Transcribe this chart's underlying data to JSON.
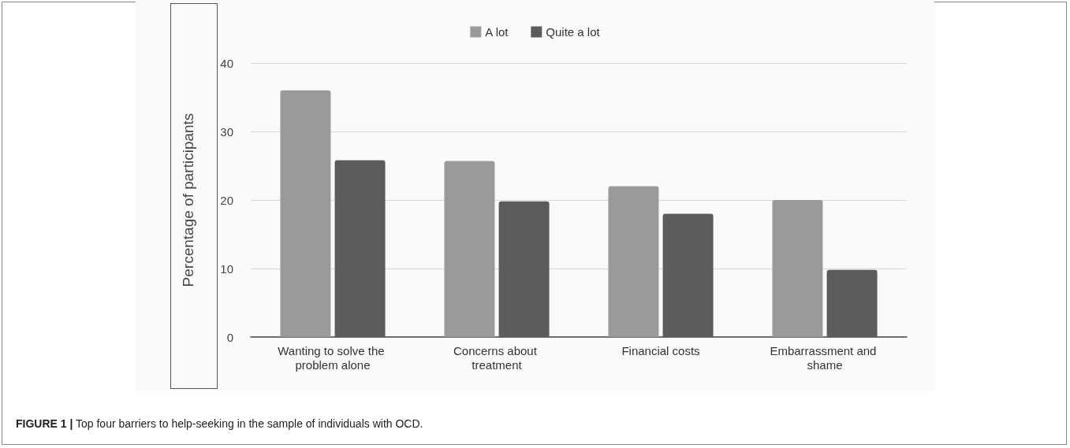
{
  "chart_data": {
    "type": "bar",
    "ylabel": "Percentage of participants",
    "categories": [
      "Wanting to solve the problem alone",
      "Concerns about treatment",
      "Financial costs",
      "Embarrassment and shame"
    ],
    "series": [
      {
        "name": "A lot",
        "color": "#9a9a9a",
        "values": [
          36,
          25.7,
          22,
          20
        ]
      },
      {
        "name": "Quite a lot",
        "color": "#5c5c5c",
        "values": [
          25.8,
          19.8,
          18,
          9.8
        ]
      }
    ],
    "ylim": [
      0,
      40
    ],
    "yticks": [
      0,
      10,
      20,
      30,
      40
    ],
    "grid": "y",
    "legend": "top",
    "annotations": [
      "FIGURE 1 | Top four barriers to help-seeking in the sample of individuals with OCD."
    ]
  }
}
